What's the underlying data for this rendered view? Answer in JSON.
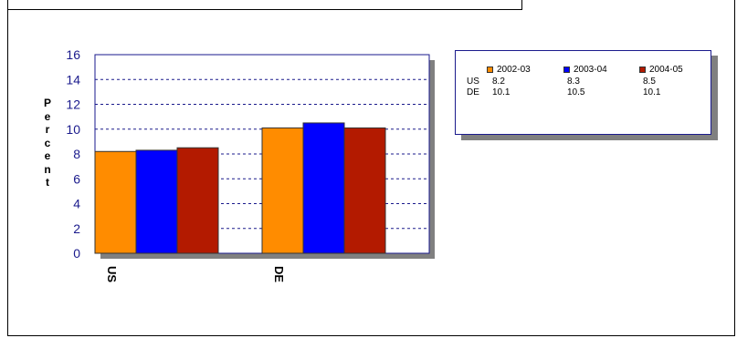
{
  "chart_data": {
    "type": "bar",
    "categories": [
      "US",
      "DE"
    ],
    "series": [
      {
        "name": "2002-03",
        "values": [
          8.2,
          10.1
        ],
        "color": "#ff8c00"
      },
      {
        "name": "2003-04",
        "values": [
          8.3,
          10.5
        ],
        "color": "#0000ff"
      },
      {
        "name": "2004-05",
        "values": [
          8.5,
          10.1
        ],
        "color": "#b31a00"
      }
    ],
    "ylabel": "Percent",
    "ylim": [
      0,
      16
    ],
    "yticks": [
      "0",
      "2",
      "4",
      "6",
      "8",
      "10",
      "12",
      "14",
      "16"
    ],
    "grid": true,
    "legend_position": "right"
  },
  "legend": {
    "rows": [
      {
        "label": "US",
        "values": [
          "8.2",
          "8.3",
          "8.5"
        ]
      },
      {
        "label": "DE",
        "values": [
          "10.1",
          "10.5",
          "10.1"
        ]
      }
    ]
  }
}
